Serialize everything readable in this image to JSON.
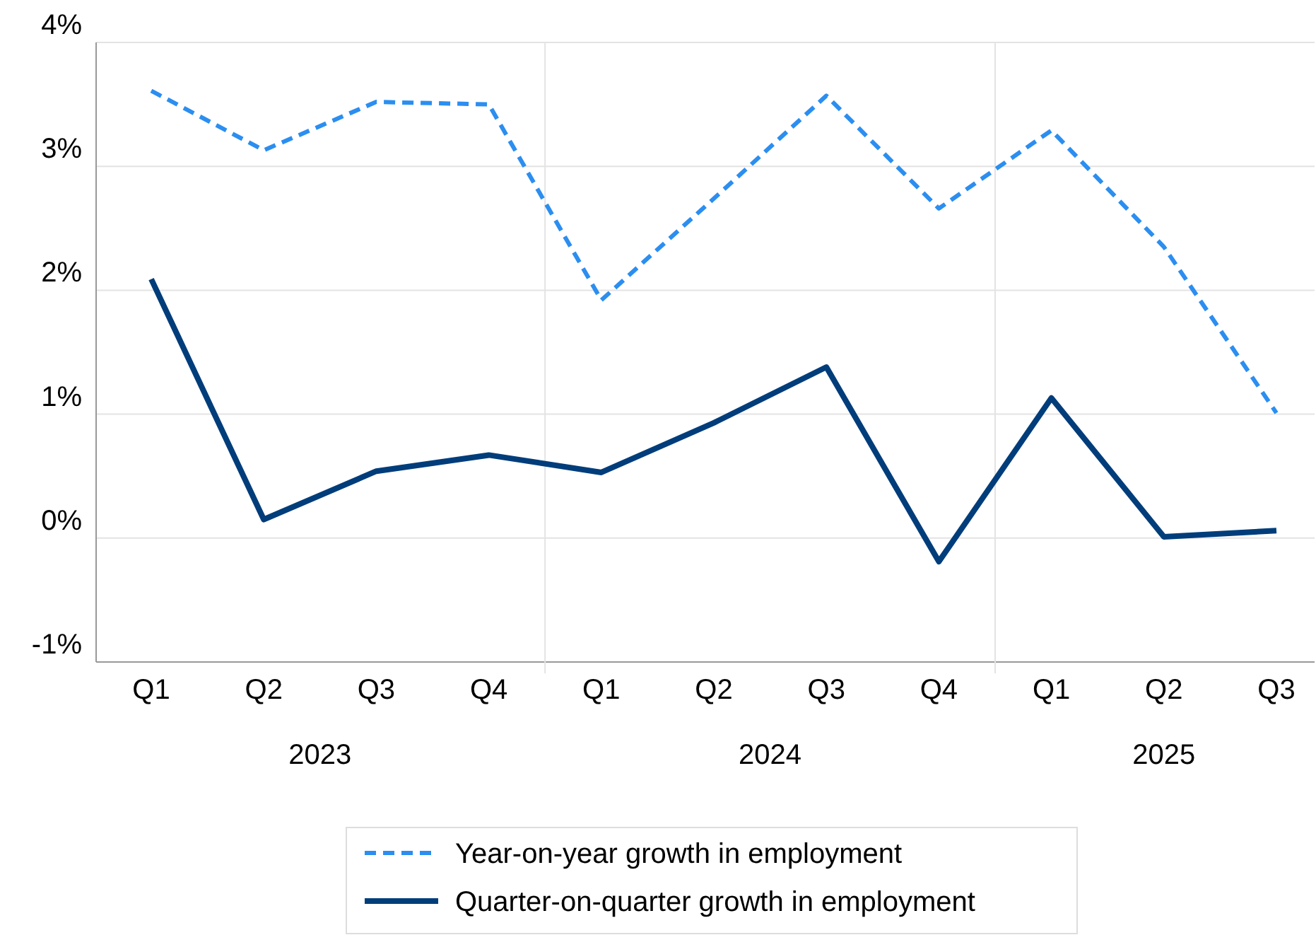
{
  "chart_data": {
    "type": "line",
    "categories": [
      "Q1",
      "Q2",
      "Q3",
      "Q4",
      "Q1",
      "Q2",
      "Q3",
      "Q4",
      "Q1",
      "Q2",
      "Q3"
    ],
    "series": [
      {
        "name": "Year-on-year growth in employment",
        "color": "#2b8ef0",
        "line_style": "dashed",
        "values": [
          3.61,
          3.13,
          3.52,
          3.5,
          1.92,
          2.74,
          3.57,
          2.66,
          3.29,
          2.35,
          1.01
        ]
      },
      {
        "name": "Quarter-on-quarter growth in employment",
        "color": "#003d7a",
        "line_style": "solid",
        "values": [
          2.09,
          0.15,
          0.54,
          0.67,
          0.53,
          0.93,
          1.38,
          -0.19,
          1.13,
          0.01,
          0.06
        ]
      }
    ],
    "annotations": [
      "2023",
      "2024",
      "2025"
    ],
    "ylim": [
      -1,
      4
    ],
    "yticks": [
      {
        "value": -1,
        "label": "-1%"
      },
      {
        "value": 0,
        "label": "0%"
      },
      {
        "value": 1,
        "label": "1%"
      },
      {
        "value": 2,
        "label": "2%"
      },
      {
        "value": 3,
        "label": "3%"
      },
      {
        "value": 4,
        "label": "4%"
      }
    ],
    "grid": true,
    "legend": "bottom",
    "marker": "none"
  }
}
